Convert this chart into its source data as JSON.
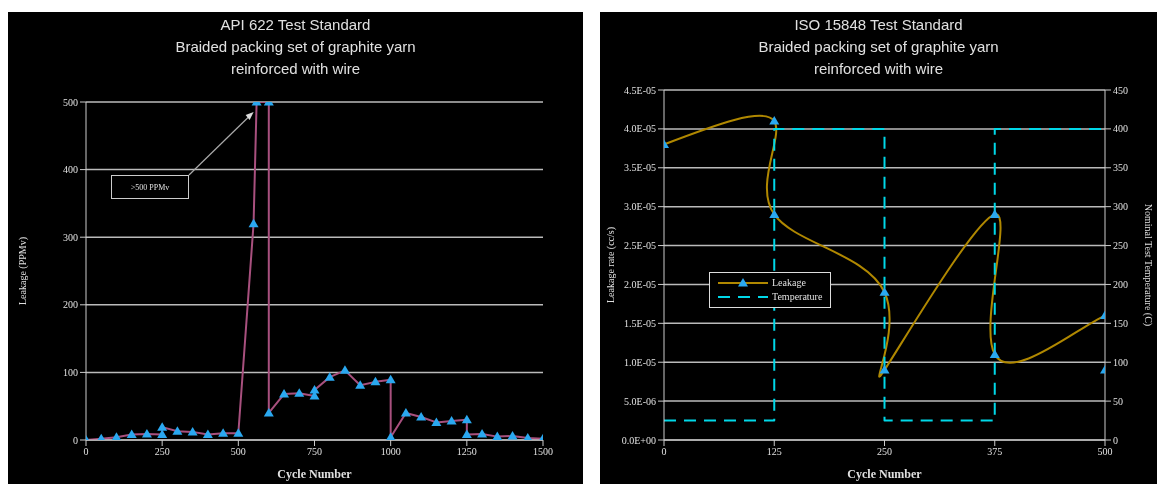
{
  "chart_data": [
    {
      "type": "line",
      "title": "API 622 Test Standard",
      "subtitle": "Braided packing set of graphite yarn reinforced with wire",
      "xlabel": "Cycle Number",
      "ylabel": "Leakage (PPMv)",
      "xlim": [
        0,
        1500
      ],
      "xticks": [
        0,
        250,
        500,
        750,
        1000,
        1250,
        1500
      ],
      "ylim": [
        0,
        500
      ],
      "yticks": [
        0,
        100,
        200,
        300,
        400,
        500
      ],
      "grid": "y",
      "marker": "triangle",
      "legend": false,
      "annotations": [
        ">500 PPMv"
      ],
      "series": [
        {
          "color": "#a8507e",
          "x": [
            0,
            50,
            100,
            150,
            200,
            250,
            250,
            300,
            350,
            400,
            450,
            500,
            550,
            560,
            600,
            600,
            650,
            700,
            750,
            750,
            800,
            850,
            900,
            950,
            1000,
            1000,
            1050,
            1100,
            1150,
            1200,
            1250,
            1250,
            1300,
            1350,
            1400,
            1450,
            1500
          ],
          "values": [
            0,
            2,
            4,
            8,
            9,
            8,
            19,
            13,
            12,
            8,
            10,
            10,
            320,
            500,
            500,
            40,
            68,
            69,
            65,
            74,
            93,
            103,
            81,
            86,
            89,
            4,
            40,
            34,
            26,
            28,
            30,
            8,
            9,
            5,
            6,
            3,
            2
          ]
        }
      ]
    },
    {
      "type": "line",
      "title": "ISO 15848 Test Standard",
      "subtitle": "Braided packing set of graphite yarn reinforced with wire",
      "xlabel": "Cycle Number",
      "ylabel": "Leakage rate (cc/s)",
      "y2label": "Nominal Test Temperature (C)",
      "xlim": [
        0,
        500
      ],
      "xticks": [
        0,
        125,
        250,
        375,
        500
      ],
      "ylim": [
        0,
        4.5e-05
      ],
      "yticks": [
        {
          "value": 0,
          "label": "0.0E+00"
        },
        {
          "value": 5e-06,
          "label": "5.0E-06"
        },
        {
          "value": 1e-05,
          "label": "1.0E-05"
        },
        {
          "value": 1.5e-05,
          "label": "1.5E-05"
        },
        {
          "value": 2e-05,
          "label": "2.0E-05"
        },
        {
          "value": 2.5e-05,
          "label": "2.5E-05"
        },
        {
          "value": 3e-05,
          "label": "3.0E-05"
        },
        {
          "value": 3.5e-05,
          "label": "3.5E-05"
        },
        {
          "value": 4e-05,
          "label": "4.0E-05"
        },
        {
          "value": 4.5e-05,
          "label": "4.5E-05"
        }
      ],
      "y2lim": [
        0,
        450
      ],
      "y2ticks": [
        0,
        50,
        100,
        150,
        200,
        250,
        300,
        350,
        400,
        450
      ],
      "grid": "y",
      "marker": "triangle",
      "legend": "left",
      "series": [
        {
          "name": "Leakage",
          "color": "#b08800",
          "x": [
            0,
            125,
            125,
            250,
            250,
            375,
            375,
            500,
            500
          ],
          "values": [
            3.8e-05,
            4.1e-05,
            2.9e-05,
            1.9e-05,
            9e-06,
            2.9e-05,
            1.1e-05,
            1.6e-05,
            9e-06
          ]
        },
        {
          "name": "Temperature",
          "type": "step",
          "color": "#00d8e8",
          "axis": "y2",
          "marker": "none",
          "line_style": "dashed",
          "x": [
            0,
            125,
            250,
            375,
            500
          ],
          "values": [
            25,
            400,
            25,
            400,
            400
          ]
        }
      ]
    }
  ]
}
